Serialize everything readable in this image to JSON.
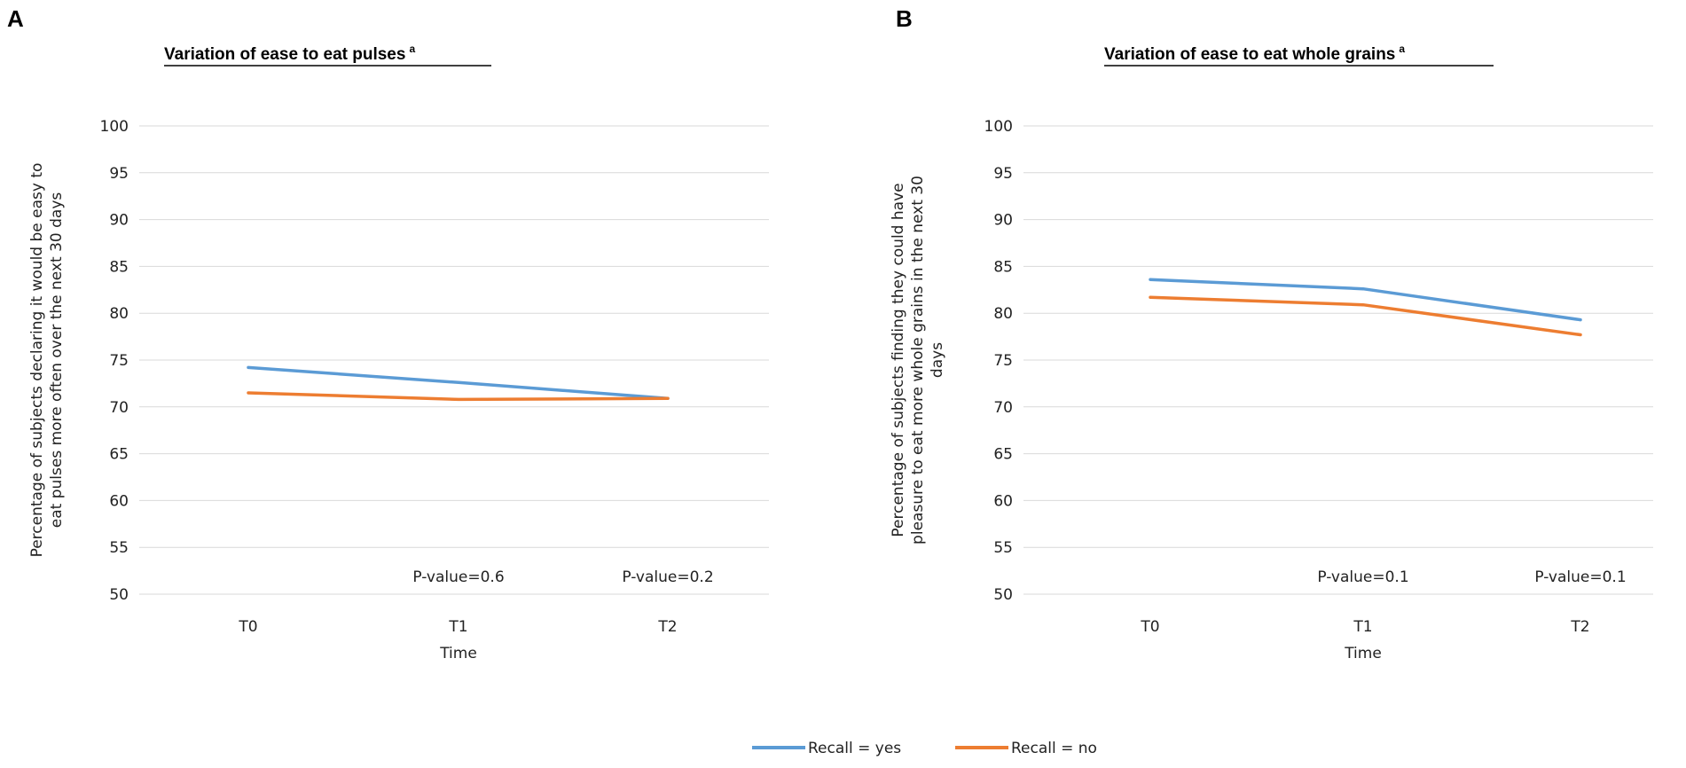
{
  "panels": [
    {
      "letter": "A",
      "title": "Variation of ease to eat pulses",
      "title_sup": "a"
    },
    {
      "letter": "B",
      "title": "Variation of ease to eat whole grains",
      "title_sup": "a"
    }
  ],
  "legend": {
    "items": [
      {
        "name": "Recall = yes",
        "color": "#5B9BD5"
      },
      {
        "name": "Recall = no",
        "color": "#ED7D31"
      }
    ],
    "placement": "bottom-center"
  },
  "chart_data": [
    {
      "type": "line",
      "title": "Variation of ease to eat pulses",
      "title_sup": "a",
      "xlabel": "Time",
      "ylabel_lines": [
        "Percentage of subjects declaring it would be easy to",
        "eat pulses more often over the next 30 days"
      ],
      "categories": [
        "T0",
        "T1",
        "T2"
      ],
      "ylim": [
        50,
        100
      ],
      "yticks": [
        "50",
        "55",
        "60",
        "65",
        "70",
        "75",
        "80",
        "85",
        "90",
        "95",
        "100"
      ],
      "grid": true,
      "series": [
        {
          "name": "Recall = yes",
          "color": "#5B9BD5",
          "values": [
            74.2,
            72.6,
            70.9
          ]
        },
        {
          "name": "Recall = no",
          "color": "#ED7D31",
          "values": [
            71.5,
            70.8,
            70.9
          ]
        }
      ],
      "annotations": [
        {
          "category": "T1",
          "text": "P-value=0.6"
        },
        {
          "category": "T2",
          "text": "P-value=0.2"
        }
      ]
    },
    {
      "type": "line",
      "title": "Variation of ease to eat whole grains",
      "title_sup": "a",
      "xlabel": "Time",
      "ylabel_lines": [
        "Percentage of subjects finding they could have",
        "pleasure to eat more whole grains in the next 30",
        "days"
      ],
      "categories": [
        "T0",
        "T1",
        "T2"
      ],
      "ylim": [
        50,
        100
      ],
      "yticks": [
        "50",
        "55",
        "60",
        "65",
        "70",
        "75",
        "80",
        "85",
        "90",
        "95",
        "100"
      ],
      "grid": true,
      "series": [
        {
          "name": "Recall = yes",
          "color": "#5B9BD5",
          "values": [
            83.6,
            82.6,
            79.3
          ]
        },
        {
          "name": "Recall = no",
          "color": "#ED7D31",
          "values": [
            81.7,
            80.9,
            77.7
          ]
        }
      ],
      "annotations": [
        {
          "category": "T1",
          "text": "P-value=0.1"
        },
        {
          "category": "T2",
          "text": "P-value=0.1"
        }
      ]
    }
  ]
}
